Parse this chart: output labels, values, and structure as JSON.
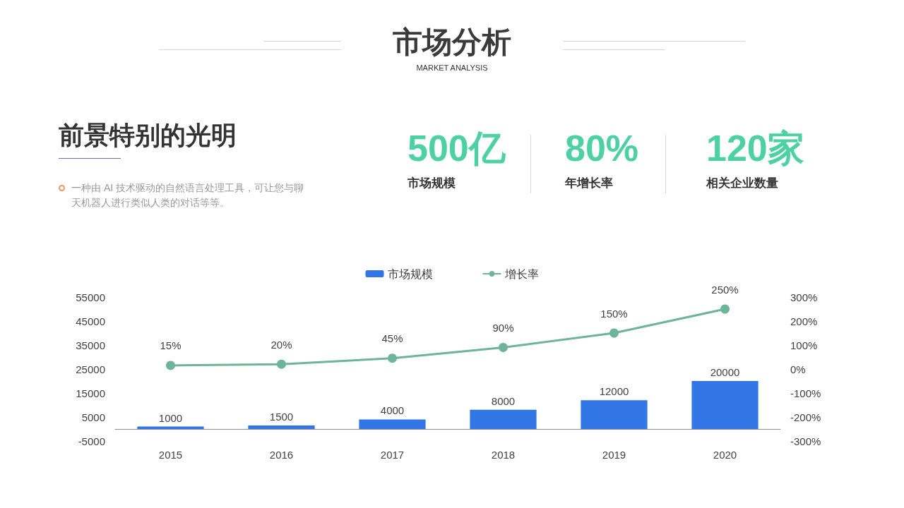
{
  "chart_data": {
    "type": "bar",
    "title": "市场分析",
    "subtitle": "MARKET ANALYSIS",
    "annotations": [
      "前景特别的光明",
      "一种由 AI 技术驱动的自然语言处理工具，可让您与聊天机器人进行类似人类的对话等等。",
      "500亿",
      "市场规模",
      "80%",
      "年增长率",
      "120家",
      "相关企业数量"
    ],
    "categories": [
      "2015",
      "2016",
      "2017",
      "2018",
      "2019",
      "2020"
    ],
    "series": [
      {
        "name": "市场规模",
        "color": "#3275e4",
        "values": [
          1000,
          1500,
          4000,
          8000,
          12000,
          20000
        ]
      },
      {
        "name": "增长率",
        "type": "line",
        "axis": "y2",
        "color": "#6db59a",
        "marker": "circle",
        "values": [
          15,
          20,
          45,
          90,
          150,
          250
        ],
        "value_labels": [
          "15%",
          "20%",
          "45%",
          "90%",
          "150%",
          "250%"
        ]
      }
    ],
    "ylim": [
      -5000,
      55000
    ],
    "yticks": [
      -5000,
      5000,
      15000,
      25000,
      35000,
      45000,
      55000
    ],
    "y2lim": [
      -300,
      300
    ],
    "y2ticks": [
      {
        "value": -300,
        "label": "-300%"
      },
      {
        "value": -200,
        "label": "-200%"
      },
      {
        "value": -100,
        "label": "-100%"
      },
      {
        "value": 0,
        "label": "0%"
      },
      {
        "value": 100,
        "label": "100%"
      },
      {
        "value": 200,
        "label": "200%"
      },
      {
        "value": 300,
        "label": "300%"
      }
    ],
    "grid": false,
    "legend": "top",
    "data_labels": true
  }
}
